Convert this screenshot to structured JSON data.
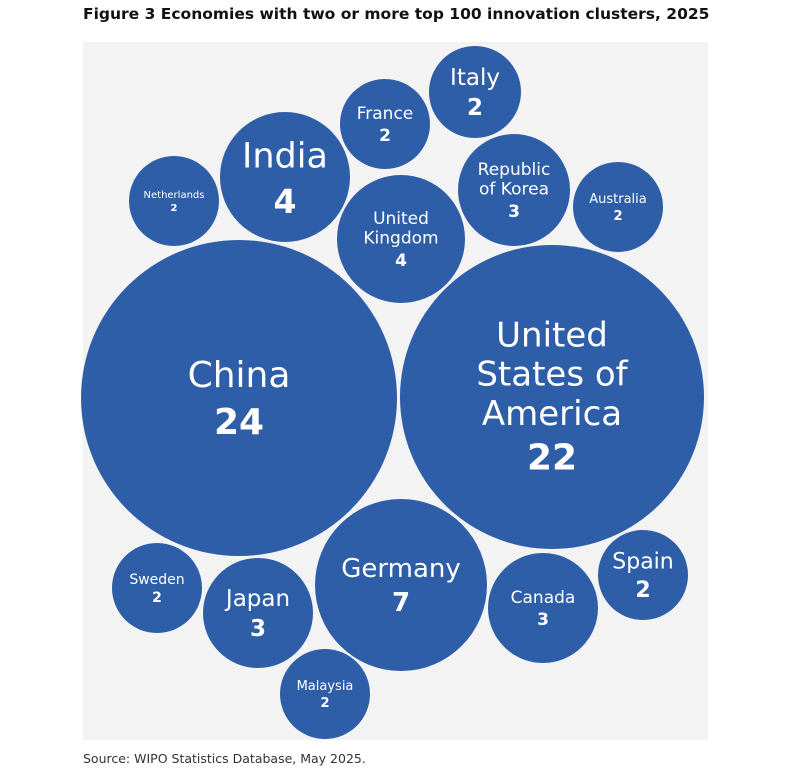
{
  "chart_data": {
    "type": "bubble",
    "title": "Figure 3 Economies with two or more top 100 innovation clusters, 2025",
    "source": "Source: WIPO Statistics Database, May 2025.",
    "bubble_color": "#2f5ea8",
    "background_color": "#f3f3f3",
    "label_color": "#ffffff",
    "points": [
      {
        "name": "China",
        "value": 24
      },
      {
        "name": "United States of America",
        "value": 22
      },
      {
        "name": "Germany",
        "value": 7
      },
      {
        "name": "India",
        "value": 4
      },
      {
        "name": "United Kingdom",
        "value": 4
      },
      {
        "name": "Republic of Korea",
        "value": 3
      },
      {
        "name": "Japan",
        "value": 3
      },
      {
        "name": "Canada",
        "value": 3
      },
      {
        "name": "Italy",
        "value": 2
      },
      {
        "name": "France",
        "value": 2
      },
      {
        "name": "Netherlands",
        "value": 2
      },
      {
        "name": "Australia",
        "value": 2
      },
      {
        "name": "Sweden",
        "value": 2
      },
      {
        "name": "Spain",
        "value": 2
      },
      {
        "name": "Malaysia",
        "value": 2
      }
    ]
  }
}
